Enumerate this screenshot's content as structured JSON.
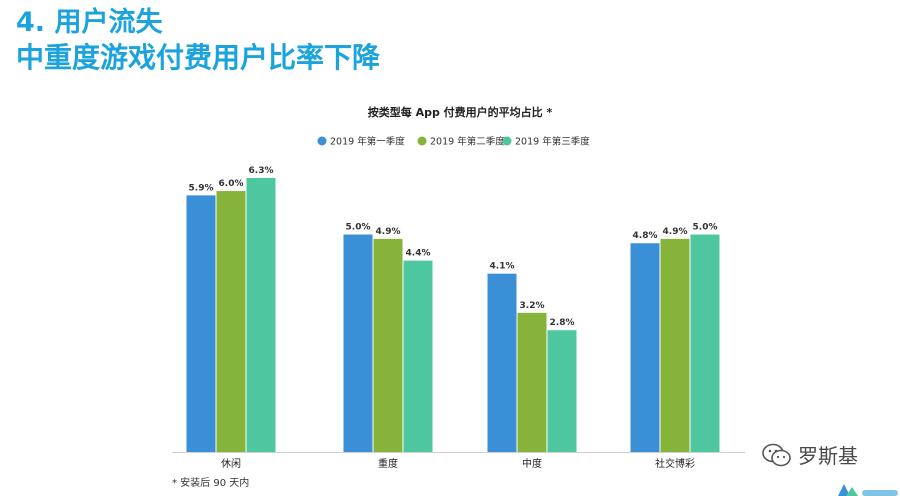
{
  "heading": {
    "line1": "4. 用户流失",
    "line2": "中重度游戏付费用户比率下降"
  },
  "footnote": "* 安装后 90 天内",
  "watermark": {
    "label": "罗斯基"
  },
  "colors": {
    "heading": "#1aa3dc",
    "series": [
      "#3b8fd6",
      "#86b33a",
      "#4ec7a1"
    ]
  },
  "chart_data": {
    "type": "bar",
    "title": "按类型每 App 付费用户的平均占比 *",
    "categories": [
      "休闲",
      "重度",
      "中度",
      "社交博彩"
    ],
    "series": [
      {
        "name": "2019 年第一季度",
        "values": [
          5.9,
          5.0,
          4.1,
          4.8
        ],
        "labels": [
          "5.9%",
          "5.0%",
          "4.1%",
          "4.8%"
        ]
      },
      {
        "name": "2019 年第二季度",
        "values": [
          6.0,
          4.9,
          3.2,
          4.9
        ],
        "labels": [
          "6.0%",
          "4.9%",
          "3.2%",
          "4.9%"
        ]
      },
      {
        "name": "2019 年第三季度",
        "values": [
          6.3,
          4.4,
          2.8,
          5.0
        ],
        "labels": [
          "6.3%",
          "4.4%",
          "2.8%",
          "5.0%"
        ]
      }
    ],
    "xlabel": "",
    "ylabel": "",
    "ylim": [
      0,
      7.0
    ],
    "grid": false,
    "legend": "top-center"
  }
}
